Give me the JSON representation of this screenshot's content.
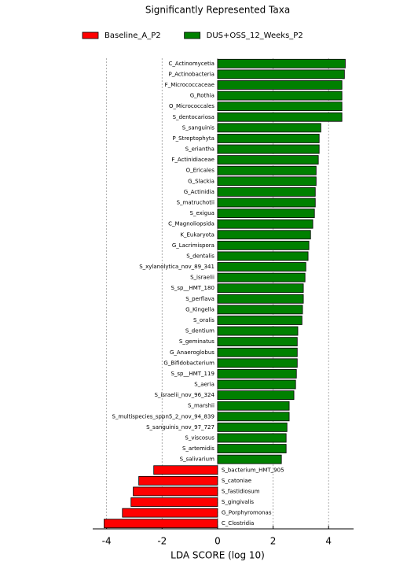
{
  "chart_data": {
    "type": "barh",
    "title": "Significantly Represented Taxa",
    "xlabel": "LDA SCORE (log 10)",
    "xlim": [
      -4.5,
      4.9
    ],
    "xticks": [
      -4,
      -2,
      0,
      2,
      4
    ],
    "grid": true,
    "legend": "top",
    "categories": [
      "C_Actinomycetia",
      "P_Actinobacteria",
      "F_Micrococcaceae",
      "G_Rothia",
      "O_Micrococcales",
      "S_dentocariosa",
      "S_sanguinis",
      "P_Streptophyta",
      "S_eriantha",
      "F_Actinidiaceae",
      "O_Ericales",
      "G_Slackia",
      "G_Actinidia",
      "S_matruchotii",
      "S_exigua",
      "C_Magnoliopsida",
      "K_Eukaryota",
      "G_Lacrimispora",
      "S_dentalis",
      "S_xylanolytica_nov_89_341",
      "S_israelii",
      "S_sp__HMT_180",
      "S_perflava",
      "G_Kingella",
      "S_oralis",
      "S_dentium",
      "S_geminatus",
      "G_Anaeroglobus",
      "G_Bifidobacterium",
      "S_sp__HMT_119",
      "S_aeria",
      "S_israelii_nov_96_324",
      "S_marshii",
      "S_multispecies_sppn5_2_nov_94_839",
      "S_sanguinis_nov_97_727",
      "S_viscosus",
      "S_artemidis",
      "S_salivarium",
      "S_bacterium_HMT_905",
      "S_catoniae",
      "S_fastidiosum",
      "S_gingivalis",
      "G_Porphyromonas",
      "C_Clostridia"
    ],
    "series": [
      {
        "name": "Baseline_A_P2",
        "color": "#ff0000",
        "values": [
          null,
          null,
          null,
          null,
          null,
          null,
          null,
          null,
          null,
          null,
          null,
          null,
          null,
          null,
          null,
          null,
          null,
          null,
          null,
          null,
          null,
          null,
          null,
          null,
          null,
          null,
          null,
          null,
          null,
          null,
          null,
          null,
          null,
          null,
          null,
          null,
          null,
          null,
          -2.3,
          -2.84,
          -3.04,
          -3.12,
          -3.43,
          -4.09
        ]
      },
      {
        "name": "DUS+OSS_12_Weeks_P2",
        "color": "#008000",
        "values": [
          4.6,
          4.57,
          4.48,
          4.48,
          4.48,
          4.48,
          3.72,
          3.66,
          3.66,
          3.63,
          3.55,
          3.55,
          3.52,
          3.52,
          3.49,
          3.43,
          3.35,
          3.29,
          3.26,
          3.18,
          3.15,
          3.09,
          3.09,
          3.06,
          3.04,
          2.89,
          2.87,
          2.87,
          2.87,
          2.84,
          2.81,
          2.75,
          2.58,
          2.58,
          2.5,
          2.47,
          2.47,
          2.3,
          null,
          null,
          null,
          null,
          null,
          null
        ]
      }
    ]
  }
}
